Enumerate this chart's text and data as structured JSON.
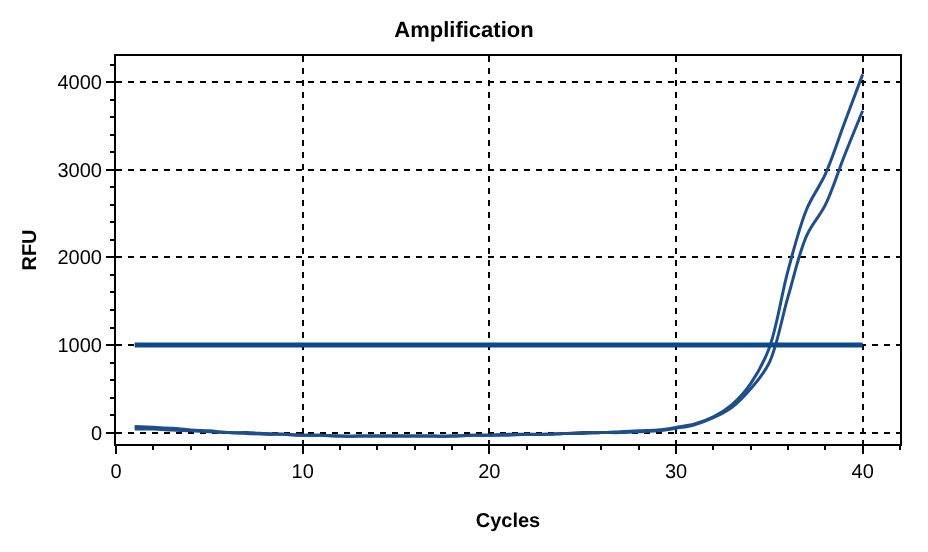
{
  "chart_data": {
    "type": "line",
    "title": "Amplification",
    "xlabel": "Cycles",
    "ylabel": "RFU",
    "x": [
      1,
      2,
      3,
      4,
      5,
      6,
      7,
      8,
      9,
      10,
      11,
      12,
      13,
      14,
      15,
      16,
      17,
      18,
      19,
      20,
      21,
      22,
      23,
      24,
      25,
      26,
      27,
      28,
      29,
      30,
      31,
      32,
      33,
      34,
      35,
      36,
      37,
      38,
      39,
      40
    ],
    "series": [
      {
        "color": "#1f4e8c",
        "values": [
          70,
          60,
          50,
          30,
          20,
          0,
          0,
          -10,
          -20,
          -30,
          -30,
          -40,
          -40,
          -40,
          -40,
          -40,
          -40,
          -40,
          -30,
          -30,
          -20,
          -20,
          -20,
          -10,
          0,
          0,
          10,
          20,
          30,
          60,
          100,
          180,
          320,
          560,
          970,
          1850,
          2550,
          2950,
          3520,
          4090
        ]
      },
      {
        "color": "#1f4e8c",
        "values": [
          40,
          40,
          30,
          20,
          10,
          0,
          -10,
          -20,
          -20,
          -30,
          -30,
          -40,
          -40,
          -40,
          -40,
          -40,
          -40,
          -40,
          -30,
          -30,
          -30,
          -20,
          -20,
          -10,
          -10,
          0,
          0,
          10,
          20,
          50,
          90,
          170,
          290,
          500,
          800,
          1550,
          2250,
          2600,
          3150,
          3675
        ]
      }
    ],
    "ref_lines": [
      {
        "axis": "y",
        "value": 1000,
        "color": "#0a4a8a"
      }
    ],
    "xlim": [
      0,
      42
    ],
    "xticks": [
      0,
      10,
      20,
      30,
      40
    ],
    "ylim": [
      -130,
      4300
    ],
    "yticks": [
      0,
      1000,
      2000,
      3000,
      4000
    ],
    "grid": true,
    "marker": "none",
    "line_style": "solid"
  }
}
